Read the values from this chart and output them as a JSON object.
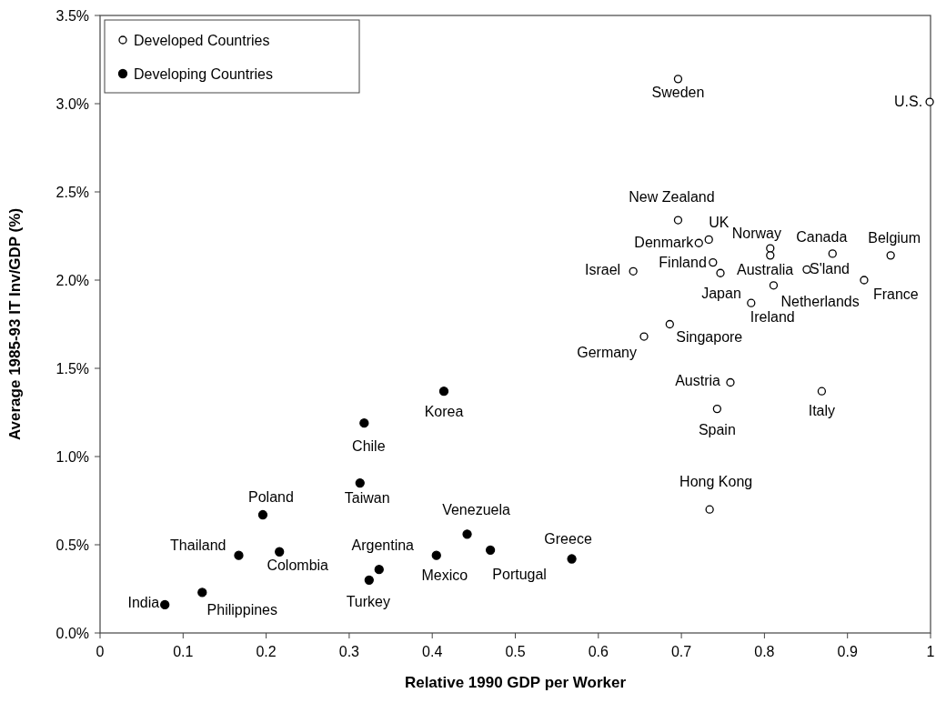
{
  "chart_data": {
    "type": "scatter",
    "xlabel": "Relative 1990 GDP per Worker",
    "ylabel": "Average 1985-93 IT Inv/GDP (%)",
    "xlim": [
      0,
      1
    ],
    "xticks": [
      0,
      0.1,
      0.2,
      0.3,
      0.4,
      0.5,
      0.6,
      0.7,
      0.8,
      0.9,
      1
    ],
    "ylim": [
      0,
      3.5
    ],
    "yticks": [
      {
        "value": 0,
        "label": "0.0%"
      },
      {
        "value": 0.5,
        "label": "0.5%"
      },
      {
        "value": 1,
        "label": "1.0%"
      },
      {
        "value": 1.5,
        "label": "1.5%"
      },
      {
        "value": 2,
        "label": "2.0%"
      },
      {
        "value": 2.5,
        "label": "2.5%"
      },
      {
        "value": 3,
        "label": "3.0%"
      },
      {
        "value": 3.5,
        "label": "3.5%"
      }
    ],
    "grid": false,
    "legend": "top left",
    "marker": "circle",
    "series": [
      {
        "name": "Developed Countries",
        "color": "#000000",
        "x": [
          0.696,
          0.999,
          0.696,
          0.733,
          0.721,
          0.807,
          0.807,
          0.882,
          0.952,
          0.642,
          0.738,
          0.747,
          0.851,
          0.92,
          0.811,
          0.784,
          0.686,
          0.655,
          0.759,
          0.869,
          0.743,
          0.734
        ],
        "values": [
          3.14,
          3.01,
          2.34,
          2.23,
          2.21,
          2.18,
          2.14,
          2.15,
          2.14,
          2.05,
          2.1,
          2.04,
          2.06,
          2.0,
          1.97,
          1.87,
          1.75,
          1.68,
          1.42,
          1.37,
          1.27,
          0.7
        ]
      },
      {
        "name": "Developing Countries",
        "color": "#000000",
        "x": [
          0.414,
          0.318,
          0.313,
          0.196,
          0.442,
          0.47,
          0.568,
          0.405,
          0.167,
          0.216,
          0.336,
          0.324,
          0.123,
          0.078
        ],
        "values": [
          1.37,
          1.19,
          0.85,
          0.67,
          0.56,
          0.47,
          0.42,
          0.44,
          0.44,
          0.46,
          0.36,
          0.3,
          0.23,
          0.16
        ]
      }
    ],
    "annotations": [
      {
        "text": "Sweden",
        "x": 0.696,
        "y": 3.14
      },
      {
        "text": "U.S.",
        "x": 0.999,
        "y": 3.01
      },
      {
        "text": "New Zealand",
        "x": 0.696,
        "y": 2.34
      },
      {
        "text": "UK",
        "x": 0.733,
        "y": 2.23
      },
      {
        "text": "Denmark",
        "x": 0.721,
        "y": 2.21
      },
      {
        "text": "Norway",
        "x": 0.807,
        "y": 2.18
      },
      {
        "text": "Canada",
        "x": 0.882,
        "y": 2.15
      },
      {
        "text": "Belgium",
        "x": 0.952,
        "y": 2.14
      },
      {
        "text": "Israel",
        "x": 0.642,
        "y": 2.05
      },
      {
        "text": "Finland",
        "x": 0.738,
        "y": 2.1
      },
      {
        "text": "Australia",
        "x": 0.747,
        "y": 2.04
      },
      {
        "text": "S'land",
        "x": 0.851,
        "y": 2.06
      },
      {
        "text": "France",
        "x": 0.92,
        "y": 2.0
      },
      {
        "text": "Netherlands",
        "x": 0.811,
        "y": 1.97
      },
      {
        "text": "Japan",
        "x": 0.784,
        "y": 1.87
      },
      {
        "text": "Ireland",
        "x": 0.784,
        "y": 1.87
      },
      {
        "text": "Singapore",
        "x": 0.686,
        "y": 1.75
      },
      {
        "text": "Germany",
        "x": 0.655,
        "y": 1.68
      },
      {
        "text": "Austria",
        "x": 0.759,
        "y": 1.42
      },
      {
        "text": "Italy",
        "x": 0.869,
        "y": 1.37
      },
      {
        "text": "Spain",
        "x": 0.743,
        "y": 1.27
      },
      {
        "text": "Hong Kong",
        "x": 0.734,
        "y": 0.7
      },
      {
        "text": "Korea",
        "x": 0.414,
        "y": 1.37
      },
      {
        "text": "Chile",
        "x": 0.318,
        "y": 1.19
      },
      {
        "text": "Taiwan",
        "x": 0.313,
        "y": 0.85
      },
      {
        "text": "Poland",
        "x": 0.196,
        "y": 0.67
      },
      {
        "text": "Venezuela",
        "x": 0.442,
        "y": 0.56
      },
      {
        "text": "Portugal",
        "x": 0.47,
        "y": 0.47
      },
      {
        "text": "Greece",
        "x": 0.568,
        "y": 0.42
      },
      {
        "text": "Mexico",
        "x": 0.405,
        "y": 0.44
      },
      {
        "text": "Thailand",
        "x": 0.167,
        "y": 0.44
      },
      {
        "text": "Colombia",
        "x": 0.216,
        "y": 0.46
      },
      {
        "text": "Argentina",
        "x": 0.336,
        "y": 0.36
      },
      {
        "text": "Turkey",
        "x": 0.324,
        "y": 0.3
      },
      {
        "text": "Philippines",
        "x": 0.123,
        "y": 0.23
      },
      {
        "text": "India",
        "x": 0.078,
        "y": 0.16
      }
    ]
  }
}
